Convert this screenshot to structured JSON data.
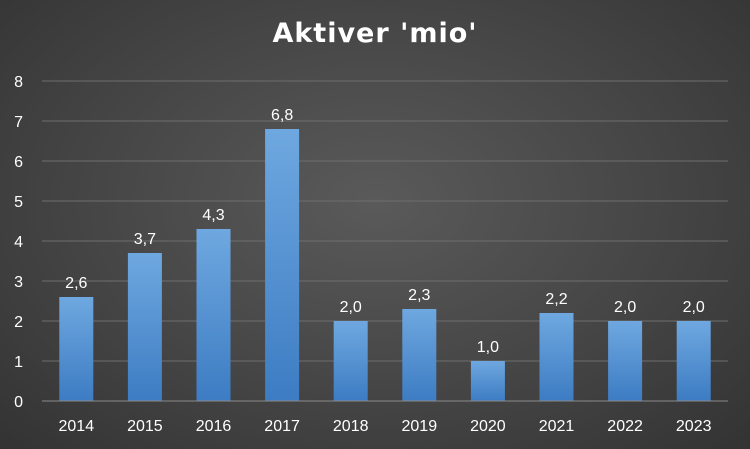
{
  "chart_data": {
    "type": "bar",
    "title": "Aktiver 'mio'",
    "categories": [
      "2014",
      "2015",
      "2016",
      "2017",
      "2018",
      "2019",
      "2020",
      "2021",
      "2022",
      "2023"
    ],
    "values": [
      2.6,
      3.7,
      4.3,
      6.8,
      2.0,
      2.3,
      1.0,
      2.2,
      2.0,
      2.0
    ],
    "data_labels": [
      "2,6",
      "3,7",
      "4,3",
      "6,8",
      "2,0",
      "2,3",
      "1,0",
      "2,2",
      "2,0",
      "2,0"
    ],
    "y_ticks": [
      "0",
      "1",
      "2",
      "3",
      "4",
      "5",
      "6",
      "7",
      "8"
    ],
    "ylim": [
      0,
      8
    ],
    "grid": true,
    "legend": "none",
    "xlabel": "",
    "ylabel": ""
  },
  "colors": {
    "bar_top": "#6fa8e0",
    "bar_bottom": "#3d7cc3",
    "grid": "#6e6e6e",
    "axis": "#8a8a8a",
    "text": "#ffffff"
  }
}
